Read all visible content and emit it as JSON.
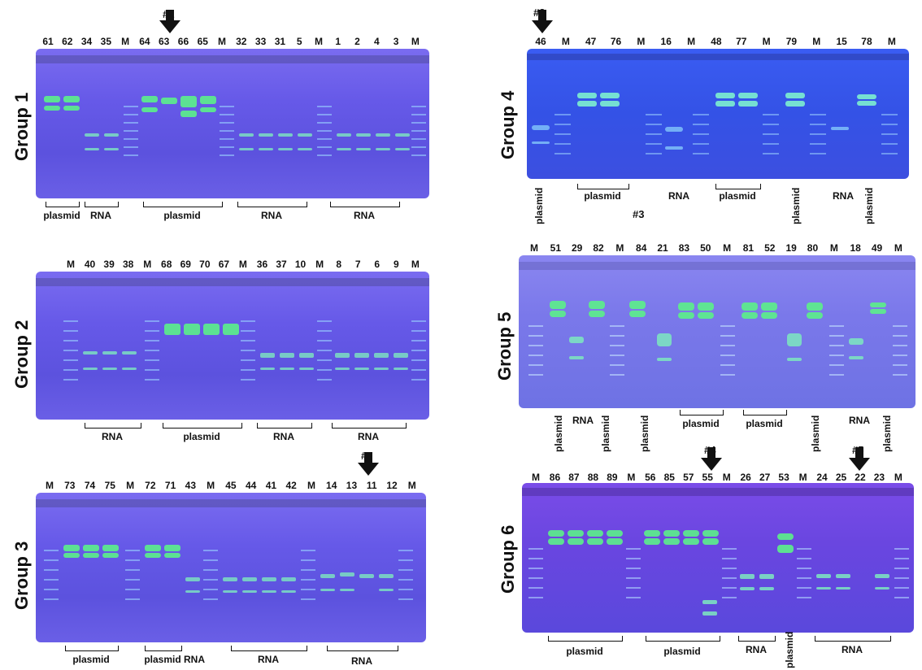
{
  "groups": [
    {
      "label": "Group 1",
      "lanes": [
        "61",
        "62",
        "34",
        "35",
        "M",
        "64",
        "63",
        "66",
        "65",
        "M",
        "32",
        "33",
        "31",
        "5",
        "M",
        "1",
        "2",
        "4",
        "3",
        "M"
      ],
      "brackets": [
        {
          "label": "plasmid"
        },
        {
          "label": "RNA"
        },
        {
          "label": "plasmid"
        },
        {
          "label": "RNA"
        },
        {
          "label": "RNA"
        }
      ]
    },
    {
      "label": "Group 2",
      "lanes": [
        "M",
        "40",
        "39",
        "38",
        "M",
        "68",
        "69",
        "70",
        "67",
        "M",
        "36",
        "37",
        "10",
        "M",
        "8",
        "7",
        "6",
        "9",
        "M"
      ],
      "brackets": [
        {
          "label": "RNA"
        },
        {
          "label": "plasmid"
        },
        {
          "label": "RNA"
        },
        {
          "label": "RNA"
        }
      ]
    },
    {
      "label": "Group 3",
      "lanes": [
        "M",
        "73",
        "74",
        "75",
        "M",
        "72",
        "71",
        "43",
        "M",
        "45",
        "44",
        "41",
        "42",
        "M",
        "14",
        "13",
        "11",
        "12",
        "M"
      ],
      "brackets": [
        {
          "label": "plasmid"
        },
        {
          "label": "plasmid"
        },
        {
          "label": "RNA"
        },
        {
          "label": "RNA"
        }
      ],
      "extra_labels": [
        "RNA"
      ]
    },
    {
      "label": "Group 4",
      "lanes": [
        "46",
        "M",
        "47",
        "76",
        "M",
        "16",
        "M",
        "48",
        "77",
        "M",
        "79",
        "M",
        "15",
        "78",
        "M"
      ],
      "brackets": [
        {
          "label": "plasmid"
        },
        {
          "label": "RNA"
        },
        {
          "label": "plasmid"
        },
        {
          "label": "RNA"
        }
      ],
      "vertical_labels": [
        "plasmid",
        "plasmid",
        "plasmid"
      ],
      "extra_labels": [
        "#3"
      ]
    },
    {
      "label": "Group 5",
      "lanes": [
        "M",
        "51",
        "29",
        "82",
        "M",
        "84",
        "21",
        "83",
        "50",
        "M",
        "81",
        "52",
        "19",
        "80",
        "M",
        "18",
        "49",
        "M"
      ],
      "brackets": [
        {
          "label": "plasmid"
        },
        {
          "label": "plasmid"
        }
      ],
      "vertical_labels": [
        "plasmid",
        "plasmid",
        "plasmid",
        "plasmid",
        "plasmid"
      ],
      "extra_labels": [
        "RNA",
        "RNA"
      ]
    },
    {
      "label": "Group 6",
      "lanes": [
        "M",
        "86",
        "87",
        "88",
        "89",
        "M",
        "56",
        "85",
        "57",
        "55",
        "M",
        "26",
        "27",
        "53",
        "M",
        "24",
        "25",
        "22",
        "23",
        "M"
      ],
      "brackets": [
        {
          "label": "plasmid"
        },
        {
          "label": "plasmid"
        },
        {
          "label": "RNA"
        },
        {
          "label": "RNA"
        }
      ],
      "vertical_labels": [
        "plasmid"
      ]
    }
  ],
  "arrows": [
    {
      "label": "#1"
    },
    {
      "label": "#2"
    },
    {
      "label": "#3"
    },
    {
      "label": "#4"
    },
    {
      "label": "#5"
    }
  ]
}
